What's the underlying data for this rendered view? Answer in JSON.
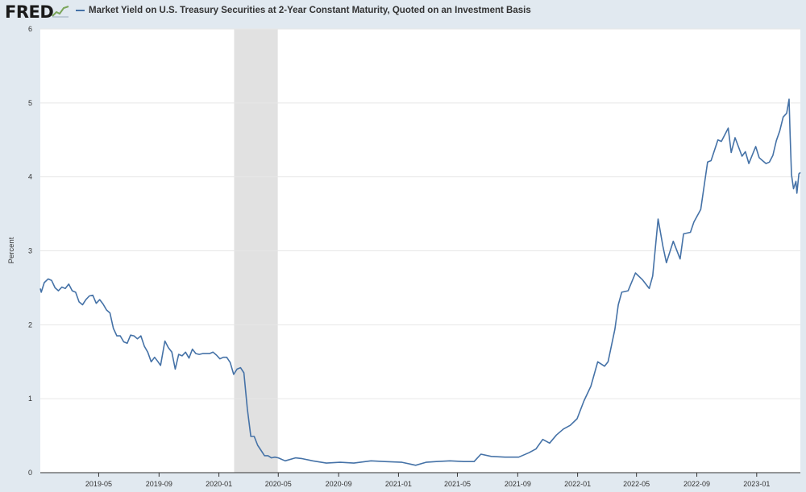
{
  "header": {
    "logo_text": "FRED",
    "logo_icon": "line-graph-icon",
    "series_color": "#4572a7"
  },
  "chart_data": {
    "type": "line",
    "title": "",
    "ylabel": "Percent",
    "xlabel": "",
    "ylim": [
      0,
      6
    ],
    "yticks": [
      "0",
      "1",
      "2",
      "3",
      "4",
      "5",
      "6"
    ],
    "xlim": [
      "2019-01-02",
      "2023-03-31"
    ],
    "xticks": [
      {
        "date": "2019-05-01",
        "label": "2019-05"
      },
      {
        "date": "2019-09-01",
        "label": "2019-09"
      },
      {
        "date": "2020-01-01",
        "label": "2020-01"
      },
      {
        "date": "2020-05-01",
        "label": "2020-05"
      },
      {
        "date": "2020-09-01",
        "label": "2020-09"
      },
      {
        "date": "2021-01-01",
        "label": "2021-01"
      },
      {
        "date": "2021-05-01",
        "label": "2021-05"
      },
      {
        "date": "2021-09-01",
        "label": "2021-09"
      },
      {
        "date": "2022-01-01",
        "label": "2022-01"
      },
      {
        "date": "2022-05-01",
        "label": "2022-05"
      },
      {
        "date": "2022-09-01",
        "label": "2022-09"
      },
      {
        "date": "2023-01-01",
        "label": "2023-01"
      }
    ],
    "grid": true,
    "legend_position": "top-left",
    "recession": {
      "start": "2020-02-01",
      "end": "2020-04-30",
      "color": "#e1e1e1"
    },
    "series": [
      {
        "name": "Market Yield on U.S. Treasury Securities at 2-Year Constant Maturity, Quoted on an Investment Basis",
        "color": "#4572a7",
        "points": [
          [
            "2019-01-02",
            2.49
          ],
          [
            "2019-01-04",
            2.44
          ],
          [
            "2019-01-10",
            2.57
          ],
          [
            "2019-01-18",
            2.62
          ],
          [
            "2019-01-25",
            2.6
          ],
          [
            "2019-02-01",
            2.5
          ],
          [
            "2019-02-08",
            2.46
          ],
          [
            "2019-02-15",
            2.51
          ],
          [
            "2019-02-22",
            2.49
          ],
          [
            "2019-03-01",
            2.55
          ],
          [
            "2019-03-08",
            2.46
          ],
          [
            "2019-03-15",
            2.44
          ],
          [
            "2019-03-22",
            2.31
          ],
          [
            "2019-03-29",
            2.27
          ],
          [
            "2019-04-05",
            2.34
          ],
          [
            "2019-04-12",
            2.39
          ],
          [
            "2019-04-19",
            2.4
          ],
          [
            "2019-04-26",
            2.29
          ],
          [
            "2019-05-03",
            2.34
          ],
          [
            "2019-05-10",
            2.28
          ],
          [
            "2019-05-17",
            2.2
          ],
          [
            "2019-05-24",
            2.16
          ],
          [
            "2019-05-31",
            1.95
          ],
          [
            "2019-06-07",
            1.85
          ],
          [
            "2019-06-14",
            1.85
          ],
          [
            "2019-06-21",
            1.77
          ],
          [
            "2019-06-28",
            1.75
          ],
          [
            "2019-07-05",
            1.86
          ],
          [
            "2019-07-12",
            1.85
          ],
          [
            "2019-07-19",
            1.81
          ],
          [
            "2019-07-26",
            1.85
          ],
          [
            "2019-08-02",
            1.71
          ],
          [
            "2019-08-09",
            1.63
          ],
          [
            "2019-08-16",
            1.5
          ],
          [
            "2019-08-23",
            1.56
          ],
          [
            "2019-08-30",
            1.5
          ],
          [
            "2019-09-04",
            1.45
          ],
          [
            "2019-09-13",
            1.78
          ],
          [
            "2019-09-20",
            1.69
          ],
          [
            "2019-09-27",
            1.63
          ],
          [
            "2019-10-04",
            1.4
          ],
          [
            "2019-10-11",
            1.6
          ],
          [
            "2019-10-18",
            1.58
          ],
          [
            "2019-10-25",
            1.63
          ],
          [
            "2019-11-01",
            1.55
          ],
          [
            "2019-11-08",
            1.67
          ],
          [
            "2019-11-15",
            1.61
          ],
          [
            "2019-11-22",
            1.6
          ],
          [
            "2019-11-29",
            1.61
          ],
          [
            "2019-12-06",
            1.61
          ],
          [
            "2019-12-13",
            1.61
          ],
          [
            "2019-12-20",
            1.63
          ],
          [
            "2019-12-27",
            1.59
          ],
          [
            "2020-01-03",
            1.54
          ],
          [
            "2020-01-10",
            1.56
          ],
          [
            "2020-01-17",
            1.56
          ],
          [
            "2020-01-24",
            1.49
          ],
          [
            "2020-01-31",
            1.33
          ],
          [
            "2020-02-07",
            1.4
          ],
          [
            "2020-02-14",
            1.42
          ],
          [
            "2020-02-21",
            1.35
          ],
          [
            "2020-02-28",
            0.86
          ],
          [
            "2020-03-06",
            0.49
          ],
          [
            "2020-03-13",
            0.49
          ],
          [
            "2020-03-20",
            0.37
          ],
          [
            "2020-03-27",
            0.3
          ],
          [
            "2020-04-03",
            0.23
          ],
          [
            "2020-04-10",
            0.23
          ],
          [
            "2020-04-17",
            0.2
          ],
          [
            "2020-04-24",
            0.21
          ],
          [
            "2020-05-01",
            0.2
          ],
          [
            "2020-05-15",
            0.16
          ],
          [
            "2020-06-05",
            0.2
          ],
          [
            "2020-06-19",
            0.19
          ],
          [
            "2020-07-10",
            0.16
          ],
          [
            "2020-08-07",
            0.13
          ],
          [
            "2020-09-04",
            0.14
          ],
          [
            "2020-10-02",
            0.13
          ],
          [
            "2020-11-06",
            0.16
          ],
          [
            "2020-12-04",
            0.15
          ],
          [
            "2021-01-08",
            0.14
          ],
          [
            "2021-02-05",
            0.1
          ],
          [
            "2021-02-26",
            0.14
          ],
          [
            "2021-03-19",
            0.15
          ],
          [
            "2021-04-16",
            0.16
          ],
          [
            "2021-05-14",
            0.15
          ],
          [
            "2021-06-04",
            0.15
          ],
          [
            "2021-06-18",
            0.25
          ],
          [
            "2021-07-09",
            0.22
          ],
          [
            "2021-08-06",
            0.21
          ],
          [
            "2021-09-03",
            0.21
          ],
          [
            "2021-09-24",
            0.27
          ],
          [
            "2021-10-08",
            0.32
          ],
          [
            "2021-10-22",
            0.45
          ],
          [
            "2021-11-05",
            0.4
          ],
          [
            "2021-11-19",
            0.51
          ],
          [
            "2021-12-03",
            0.59
          ],
          [
            "2021-12-17",
            0.64
          ],
          [
            "2021-12-31",
            0.73
          ],
          [
            "2022-01-14",
            0.97
          ],
          [
            "2022-01-28",
            1.17
          ],
          [
            "2022-02-11",
            1.5
          ],
          [
            "2022-02-25",
            1.44
          ],
          [
            "2022-03-04",
            1.5
          ],
          [
            "2022-03-18",
            1.94
          ],
          [
            "2022-03-25",
            2.27
          ],
          [
            "2022-04-01",
            2.44
          ],
          [
            "2022-04-14",
            2.46
          ],
          [
            "2022-04-29",
            2.7
          ],
          [
            "2022-05-13",
            2.61
          ],
          [
            "2022-05-27",
            2.49
          ],
          [
            "2022-06-03",
            2.66
          ],
          [
            "2022-06-14",
            3.43
          ],
          [
            "2022-06-24",
            3.06
          ],
          [
            "2022-07-01",
            2.84
          ],
          [
            "2022-07-15",
            3.13
          ],
          [
            "2022-07-29",
            2.89
          ],
          [
            "2022-08-05",
            3.23
          ],
          [
            "2022-08-19",
            3.25
          ],
          [
            "2022-08-26",
            3.39
          ],
          [
            "2022-09-09",
            3.56
          ],
          [
            "2022-09-23",
            4.2
          ],
          [
            "2022-09-30",
            4.22
          ],
          [
            "2022-10-14",
            4.5
          ],
          [
            "2022-10-21",
            4.48
          ],
          [
            "2022-11-04",
            4.66
          ],
          [
            "2022-11-10",
            4.33
          ],
          [
            "2022-11-18",
            4.53
          ],
          [
            "2022-12-02",
            4.28
          ],
          [
            "2022-12-09",
            4.34
          ],
          [
            "2022-12-16",
            4.18
          ],
          [
            "2022-12-30",
            4.41
          ],
          [
            "2023-01-06",
            4.26
          ],
          [
            "2023-01-13",
            4.22
          ],
          [
            "2023-01-20",
            4.18
          ],
          [
            "2023-01-27",
            4.2
          ],
          [
            "2023-02-03",
            4.29
          ],
          [
            "2023-02-10",
            4.49
          ],
          [
            "2023-02-17",
            4.62
          ],
          [
            "2023-02-24",
            4.81
          ],
          [
            "2023-03-03",
            4.86
          ],
          [
            "2023-03-08",
            5.05
          ],
          [
            "2023-03-10",
            4.6
          ],
          [
            "2023-03-13",
            4.03
          ],
          [
            "2023-03-17",
            3.84
          ],
          [
            "2023-03-22",
            3.94
          ],
          [
            "2023-03-24",
            3.78
          ],
          [
            "2023-03-28",
            4.04
          ],
          [
            "2023-03-31",
            4.06
          ]
        ]
      }
    ]
  }
}
